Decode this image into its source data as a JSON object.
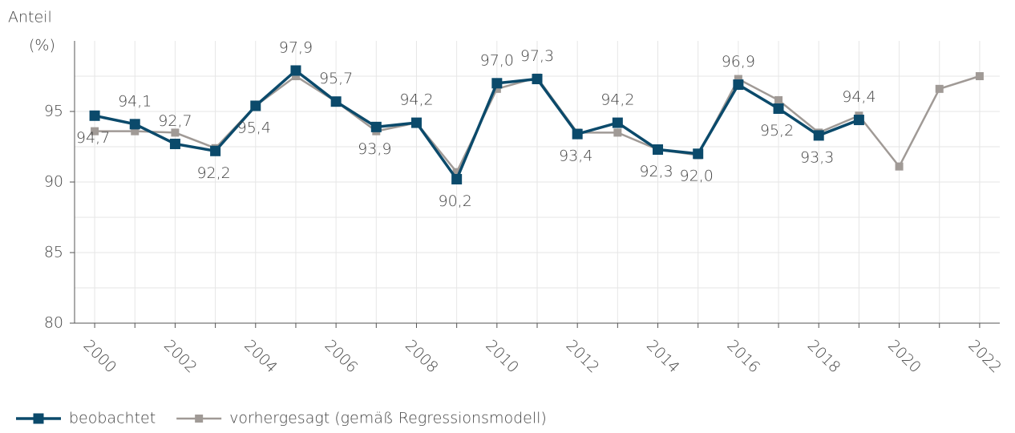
{
  "chart_data": {
    "type": "line",
    "y_label": "Anteil",
    "y_unit": "(%)",
    "x": [
      2000,
      2001,
      2002,
      2003,
      2004,
      2005,
      2006,
      2007,
      2008,
      2009,
      2010,
      2011,
      2012,
      2013,
      2014,
      2015,
      2016,
      2017,
      2018,
      2019,
      2020,
      2021,
      2022
    ],
    "series": [
      {
        "name": "beobachtet",
        "color": "#0b4a6b",
        "values": [
          94.7,
          94.1,
          92.7,
          92.2,
          95.4,
          97.9,
          95.7,
          93.9,
          94.2,
          90.2,
          97.0,
          97.3,
          93.4,
          94.2,
          92.3,
          92.0,
          96.9,
          95.2,
          93.3,
          94.4,
          null,
          null,
          null
        ],
        "value_labels": [
          "94,7",
          "94,1",
          "92,7",
          "92,2",
          "95,4",
          "97,9",
          "95,7",
          "93,9",
          "94,2",
          "90,2",
          "97,0",
          "97,3",
          "93,4",
          "94,2",
          "92,3",
          "92,0",
          "96,9",
          "95,2",
          "93,3",
          "94,4",
          null,
          null,
          null
        ]
      },
      {
        "name": "vorhergesagt (gemäß Regressionsmodell)",
        "color": "#a09a96",
        "values": [
          93.6,
          93.6,
          93.5,
          92.4,
          95.4,
          97.5,
          95.7,
          93.6,
          94.2,
          90.7,
          96.6,
          97.4,
          93.5,
          93.5,
          92.3,
          91.9,
          97.3,
          95.8,
          93.5,
          94.7,
          91.1,
          96.6,
          97.5
        ]
      }
    ],
    "xlim": [
      1999.5,
      2022.5
    ],
    "xticks": [
      2000,
      2002,
      2004,
      2006,
      2008,
      2010,
      2012,
      2014,
      2016,
      2018,
      2020,
      2022
    ],
    "ylim": [
      80,
      100
    ],
    "yticks": [
      80,
      85,
      90,
      95
    ],
    "grid": true,
    "legend": "bottom"
  }
}
